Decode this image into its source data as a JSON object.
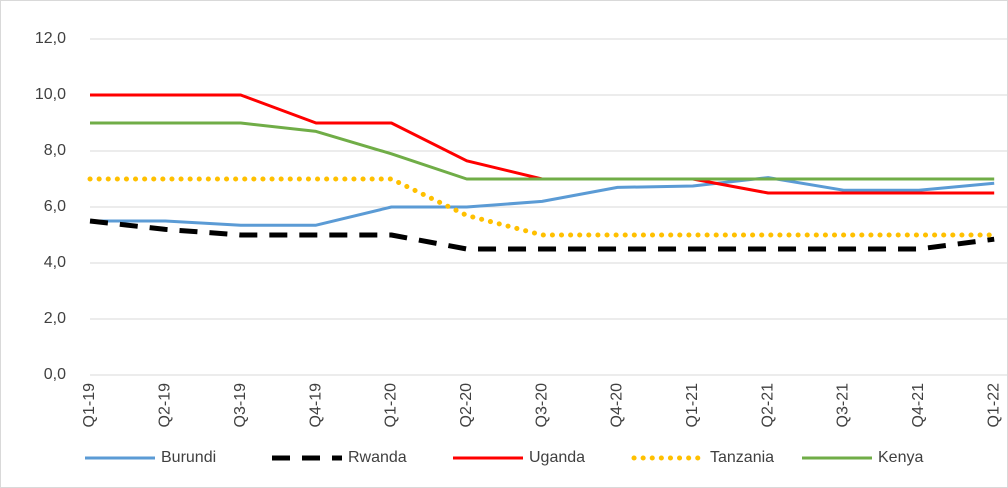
{
  "chart_data": {
    "type": "line",
    "categories": [
      "Q1-19",
      "Q2-19",
      "Q3-19",
      "Q4-19",
      "Q1-20",
      "Q2-20",
      "Q3-20",
      "Q4-20",
      "Q1-21",
      "Q2-21",
      "Q3-21",
      "Q4-21",
      "Q1-22"
    ],
    "series": [
      {
        "name": "Burundi",
        "color": "#5b9bd5",
        "style": "solid",
        "values": [
          5.5,
          5.5,
          5.35,
          5.35,
          6.0,
          6.0,
          6.2,
          6.7,
          6.75,
          7.05,
          6.6,
          6.6,
          6.85
        ]
      },
      {
        "name": "Rwanda",
        "color": "#000000",
        "style": "dash",
        "values": [
          5.5,
          5.2,
          5.0,
          5.0,
          5.0,
          4.5,
          4.5,
          4.5,
          4.5,
          4.5,
          4.5,
          4.5,
          4.85
        ]
      },
      {
        "name": "Uganda",
        "color": "#ff0000",
        "style": "solid",
        "values": [
          10,
          10,
          10,
          9,
          9,
          7.65,
          7,
          7,
          7,
          6.5,
          6.5,
          6.5,
          6.5
        ]
      },
      {
        "name": "Tanzania",
        "color": "#ffc000",
        "style": "dot",
        "values": [
          7,
          7,
          7,
          7,
          7,
          5.7,
          5,
          5,
          5,
          5,
          5,
          5,
          5
        ]
      },
      {
        "name": "Kenya",
        "color": "#70ad47",
        "style": "solid",
        "values": [
          9,
          9,
          9,
          8.7,
          7.9,
          7,
          7,
          7,
          7,
          7,
          7,
          7,
          7
        ]
      }
    ],
    "ylim": [
      0,
      12
    ],
    "yticks": [
      {
        "value": 0,
        "label": "0,0"
      },
      {
        "value": 2,
        "label": "2,0"
      },
      {
        "value": 4,
        "label": "4,0"
      },
      {
        "value": 6,
        "label": "6,0"
      },
      {
        "value": 8,
        "label": "8,0"
      },
      {
        "value": 10,
        "label": "10,0"
      },
      {
        "value": 12,
        "label": "12,0"
      }
    ],
    "grid": true,
    "legend": "bottom"
  }
}
